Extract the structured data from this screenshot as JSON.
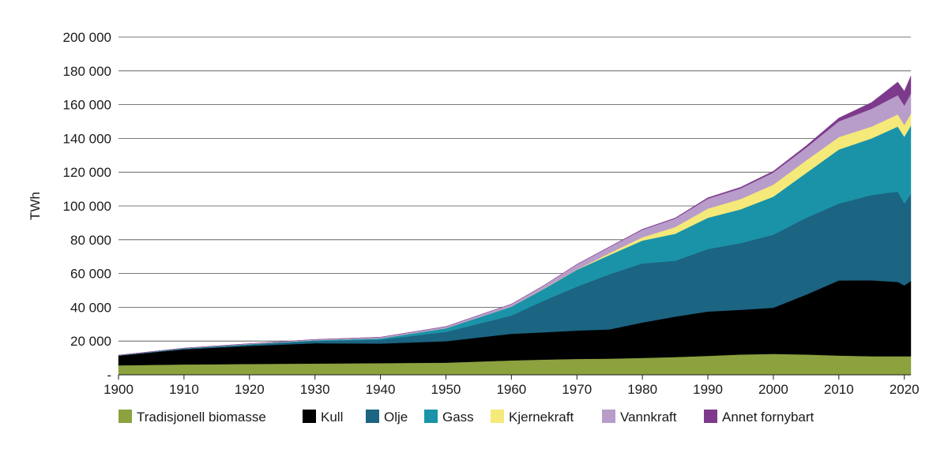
{
  "chart_data": {
    "type": "area",
    "stacked": true,
    "ylabel": "TWh",
    "xlabel": "",
    "xlim": [
      1900,
      2021
    ],
    "ylim": [
      0,
      200000
    ],
    "x_ticks": [
      1900,
      1910,
      1920,
      1930,
      1940,
      1950,
      1960,
      1970,
      1980,
      1990,
      2000,
      2010,
      2020
    ],
    "y_ticks": [
      {
        "value": 0,
        "label": "-"
      },
      {
        "value": 20000,
        "label": "20 000"
      },
      {
        "value": 40000,
        "label": "40 000"
      },
      {
        "value": 60000,
        "label": "60 000"
      },
      {
        "value": 80000,
        "label": "80 000"
      },
      {
        "value": 100000,
        "label": "100 000"
      },
      {
        "value": 120000,
        "label": "120 000"
      },
      {
        "value": 140000,
        "label": "140 000"
      },
      {
        "value": 160000,
        "label": "160 000"
      },
      {
        "value": 180000,
        "label": "180 000"
      },
      {
        "value": 200000,
        "label": "200 000"
      }
    ],
    "grid": "horizontal",
    "legend_position": "bottom",
    "x": [
      1900,
      1910,
      1920,
      1930,
      1940,
      1950,
      1960,
      1965,
      1970,
      1975,
      1980,
      1985,
      1990,
      1995,
      2000,
      2005,
      2010,
      2015,
      2019,
      2020,
      2021
    ],
    "series": [
      {
        "name": "Tradisjonell biomasse",
        "color": "#8ba23f",
        "values": [
          5600,
          6100,
          6400,
          6700,
          6900,
          7200,
          8500,
          9000,
          9400,
          9600,
          10000,
          10500,
          11200,
          12000,
          12400,
          12000,
          11400,
          11000,
          11000,
          11000,
          11000
        ]
      },
      {
        "name": "Kull",
        "color": "#000000",
        "values": [
          5700,
          9000,
          10700,
          12000,
          11600,
          12700,
          15800,
          16200,
          16800,
          17300,
          21000,
          24000,
          26300,
          26500,
          27300,
          35500,
          44500,
          45000,
          44000,
          42000,
          44500
        ]
      },
      {
        "name": "Olje",
        "color": "#1b6482",
        "values": [
          200,
          400,
          800,
          1300,
          2300,
          5500,
          10800,
          18800,
          26000,
          32700,
          35000,
          33000,
          37000,
          39500,
          43300,
          45500,
          45500,
          50500,
          53500,
          48500,
          51500
        ]
      },
      {
        "name": "Gass",
        "color": "#1a93a8",
        "values": [
          100,
          200,
          300,
          500,
          800,
          2200,
          5300,
          7000,
          10000,
          11400,
          13500,
          16000,
          18500,
          20000,
          22500,
          26500,
          32000,
          33500,
          38500,
          39500,
          40500
        ]
      },
      {
        "name": "Kjernekraft",
        "color": "#f5e97a",
        "values": [
          0,
          0,
          0,
          0,
          0,
          0,
          0,
          150,
          150,
          1100,
          1900,
          4000,
          5400,
          6100,
          7100,
          7400,
          7400,
          7000,
          7200,
          7000,
          7200
        ]
      },
      {
        "name": "Vannkraft",
        "color": "#b89cc9",
        "values": [
          50,
          120,
          250,
          450,
          700,
          1000,
          1500,
          1900,
          3000,
          3600,
          4500,
          5000,
          5900,
          6300,
          7200,
          7600,
          9300,
          10500,
          11400,
          11500,
          11800
        ]
      },
      {
        "name": "Annet fornybart",
        "color": "#7d3a8c",
        "values": [
          0,
          0,
          0,
          0,
          0,
          0,
          0,
          0,
          100,
          200,
          300,
          400,
          600,
          700,
          800,
          1100,
          2000,
          3800,
          7800,
          8500,
          10500
        ]
      }
    ]
  }
}
